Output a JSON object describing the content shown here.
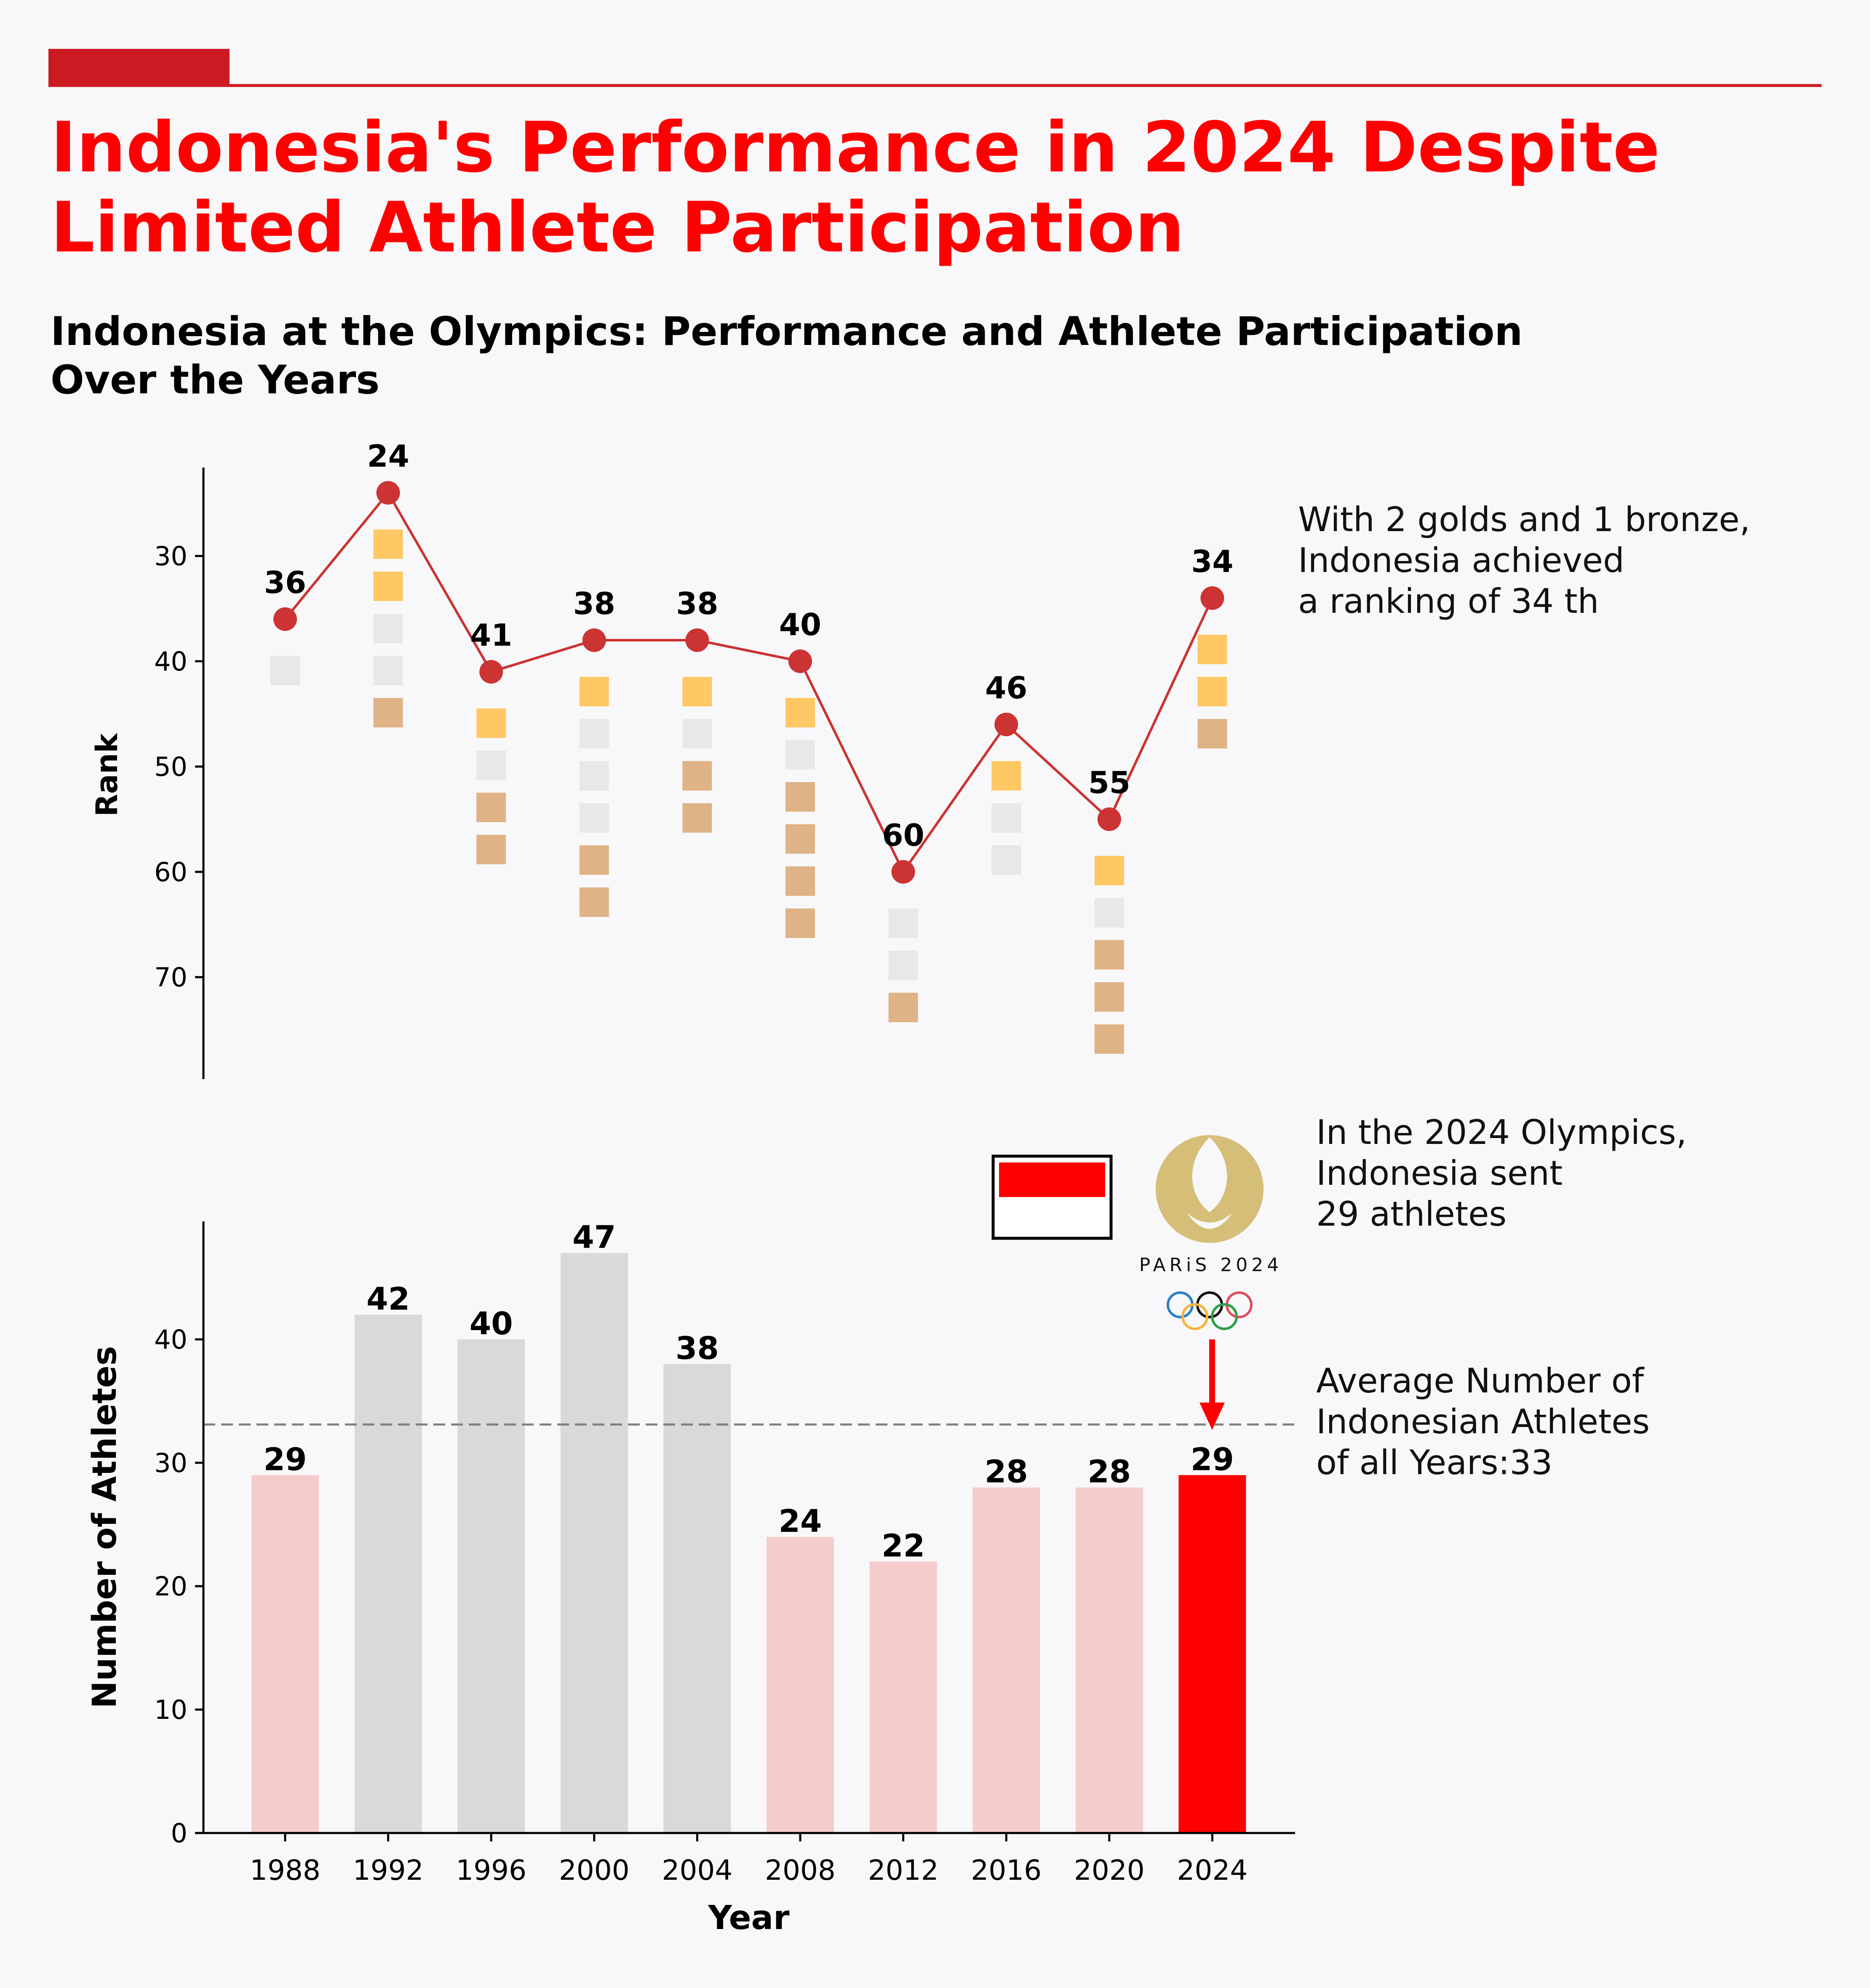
{
  "title_lines": [
    "Indonesia's Performance in 2024 Despite",
    "Limited Athlete Participation"
  ],
  "subtitle_lines": [
    "Indonesia at the Olympics: Performance and Athlete Participation",
    "Over the Years"
  ],
  "colors": {
    "accent": "#cc1a22",
    "title": "#ff0000",
    "rank_line": "#cc3333",
    "gold": "#ffc864",
    "silver": "#e8e8e8",
    "bronze": "#dfb386",
    "bar_default": "#f5cccc",
    "bar_high": "#d9d9d9",
    "bar_highlight": "#ff0000",
    "avg_line": "#808080",
    "logo_gold": "#d5bf78"
  },
  "notes": {
    "rank_note": [
      "With 2 golds and 1 bronze,",
      "Indonesia achieved",
      "a ranking of 34 th"
    ],
    "athletes_note": [
      "In the 2024 Olympics,",
      "Indonesia sent",
      "29 athletes"
    ],
    "average_note": [
      "Average Number of",
      "Indonesian Athletes",
      "of all Years:33"
    ]
  },
  "logo": {
    "text": "PARiS 2024",
    "icon": "paris-2024-flame-logo",
    "flag_icon": "indonesia-flag-icon"
  },
  "chart_data": [
    {
      "type": "line",
      "x": [
        "1988",
        "1992",
        "1996",
        "2000",
        "2004",
        "2008",
        "2012",
        "2016",
        "2020",
        "2024"
      ],
      "ylabel": "Rank",
      "ylim": [
        80,
        22
      ],
      "y_inverted": true,
      "yticks": [
        30,
        40,
        50,
        60,
        70
      ],
      "series": [
        {
          "values": [
            36,
            24,
            41,
            38,
            38,
            40,
            60,
            46,
            55,
            34
          ]
        }
      ],
      "medals": [
        {
          "gold": 0,
          "silver": 1,
          "bronze": 0
        },
        {
          "gold": 2,
          "silver": 2,
          "bronze": 1
        },
        {
          "gold": 1,
          "silver": 1,
          "bronze": 2
        },
        {
          "gold": 1,
          "silver": 3,
          "bronze": 2
        },
        {
          "gold": 1,
          "silver": 1,
          "bronze": 2
        },
        {
          "gold": 1,
          "silver": 1,
          "bronze": 4
        },
        {
          "gold": 0,
          "silver": 2,
          "bronze": 1
        },
        {
          "gold": 1,
          "silver": 2,
          "bronze": 0
        },
        {
          "gold": 1,
          "silver": 1,
          "bronze": 3
        },
        {
          "gold": 2,
          "silver": 0,
          "bronze": 1
        }
      ]
    },
    {
      "type": "bar",
      "categories": [
        "1988",
        "1992",
        "1996",
        "2000",
        "2004",
        "2008",
        "2012",
        "2016",
        "2020",
        "2024"
      ],
      "values": [
        29,
        42,
        40,
        47,
        38,
        24,
        22,
        28,
        28,
        29
      ],
      "xlabel": "Year",
      "ylabel": "Number of Athletes",
      "ylim": [
        0,
        49.35
      ],
      "yticks": [
        0,
        10,
        20,
        30,
        40
      ],
      "average": 33.1,
      "highlight": "2024"
    }
  ]
}
